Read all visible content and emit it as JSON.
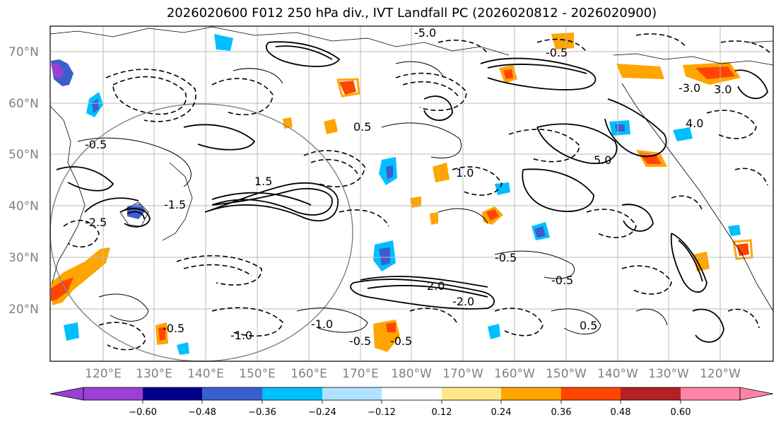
{
  "title": "2026020600 F012 250 hPa div., IVT Landfall PC (2026020812 - 2026020900)",
  "lat_labels": [
    "70°N",
    "60°N",
    "50°N",
    "40°N",
    "30°N",
    "20°N"
  ],
  "lon_labels": [
    "120°E",
    "130°E",
    "140°E",
    "150°E",
    "160°E",
    "170°E",
    "180°W",
    "170°W",
    "160°W",
    "150°W",
    "140°W",
    "130°W",
    "120°W"
  ],
  "colorbar": {
    "ticks": [
      "−0.60",
      "−0.48",
      "−0.36",
      "−0.24",
      "−0.12",
      "0.12",
      "0.24",
      "0.36",
      "0.48",
      "0.60"
    ],
    "colors": [
      "#9b3fd6",
      "#00008b",
      "#3a5fcd",
      "#00bfff",
      "#b0e2ff",
      "#ffffff",
      "#ffe78a",
      "#ffa500",
      "#ff4500",
      "#b22222",
      "#ff85a8",
      "#ff85a8"
    ]
  },
  "contour_labels": [
    "-0.5",
    "0.5",
    "1.0",
    "-1.0",
    "1.5",
    "-1.5",
    "2.0",
    "-2.0",
    "-2.5",
    "3.0",
    "-3.0",
    "4.0",
    "5.0",
    "-5.0"
  ],
  "icons": {
    "colorbar_extend_min": "triangle-left-icon",
    "colorbar_extend_max": "triangle-right-icon"
  }
}
